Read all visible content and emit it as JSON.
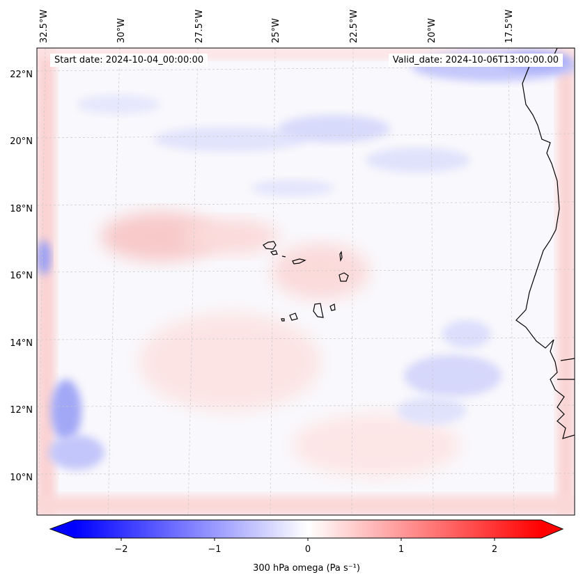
{
  "map": {
    "start_date_label": "Start date: 2024-10-04_00:00:00",
    "valid_date_label": "Valid_date: 2024-10-06T13:00:00.00",
    "longitude_labels": [
      "32.5°W",
      "30°W",
      "27.5°W",
      "25°W",
      "22.5°W",
      "20°W",
      "17.5°W"
    ],
    "latitude_labels": [
      "22°N",
      "20°N",
      "18°N",
      "16°N",
      "14°N",
      "12°N",
      "10°N"
    ],
    "field": "300 hPa omega",
    "region": "Cape Verde Islands and West African coast"
  },
  "colorbar": {
    "label": "300 hPa omega (Pa s⁻¹)",
    "ticks": [
      "−2",
      "−1",
      "0",
      "1",
      "2"
    ],
    "tick_values": [
      -2,
      -1,
      0,
      1,
      2
    ],
    "range": [
      -2.5,
      2.5
    ],
    "colors": {
      "low": "#0000ff",
      "mid": "#ffffff",
      "high": "#ff0000"
    }
  },
  "colors": {
    "frame": "#000000",
    "grid": "#c8c8c8",
    "coast": "#000000"
  }
}
